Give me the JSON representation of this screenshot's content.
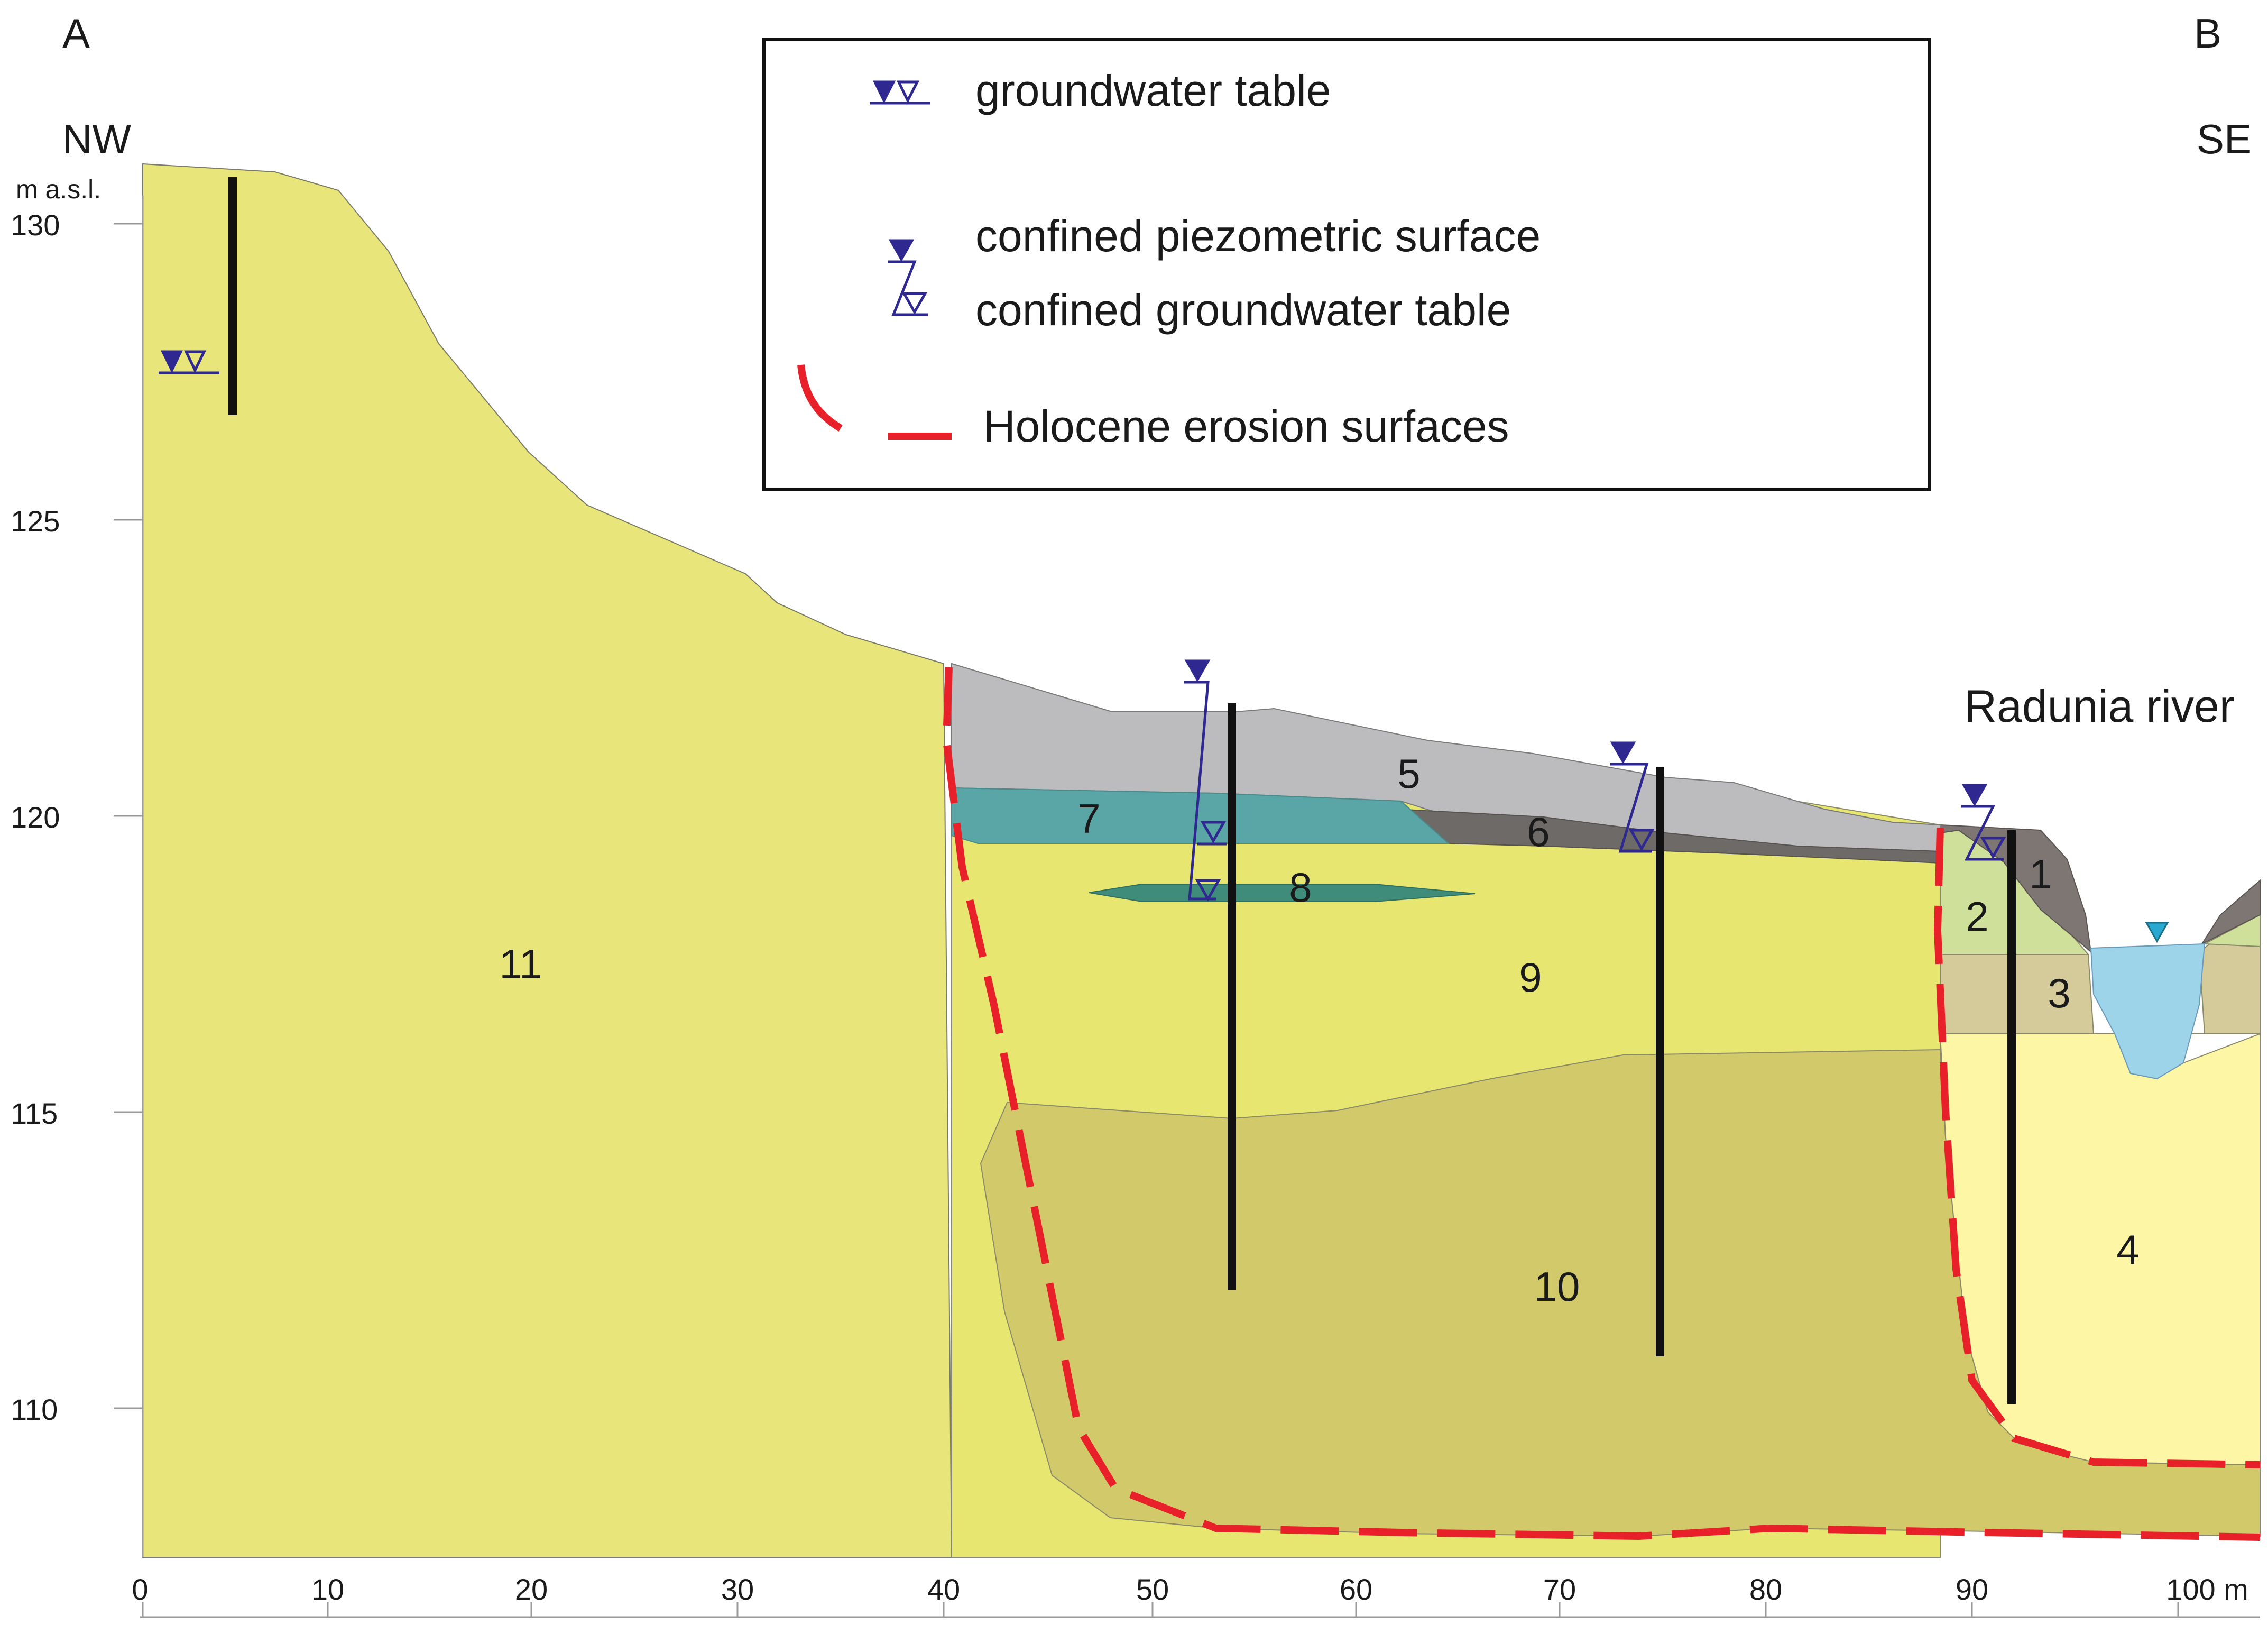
{
  "corners": {
    "left_letter": "A",
    "right_letter": "B",
    "left_direction": "NW",
    "right_direction": "SE"
  },
  "y_axis": {
    "unit_label": "m a.s.l.",
    "ticks": [
      "130",
      "125",
      "120",
      "115",
      "110"
    ]
  },
  "x_axis": {
    "ticks": [
      "0",
      "10",
      "20",
      "30",
      "40",
      "50",
      "60",
      "70",
      "80",
      "90",
      "100 m"
    ]
  },
  "legend": {
    "groundwater_table": "groundwater table",
    "confined_piezometric_surface": "confined piezometric surface",
    "confined_groundwater_table": "confined groundwater table",
    "holocene_erosion_surfaces": "Holocene erosion surfaces"
  },
  "river_label": "Radunia river",
  "units": [
    "1",
    "2",
    "3",
    "4",
    "5",
    "6",
    "7",
    "8",
    "9",
    "10",
    "11"
  ],
  "colors": {
    "unit_11": "#e8e67a",
    "unit_9": "#e6e670",
    "unit_10": "#d2ca6a",
    "unit_5": "#bcbcbe",
    "unit_6": "#6d6a68",
    "unit_7": "#5aa5a6",
    "unit_8": "#3f8c7a",
    "unit_1": "#7e7672",
    "unit_2": "#cfe09a",
    "unit_3": "#d5ca9a",
    "unit_4": "#fdf6a4",
    "river_water": "#9ed4ea",
    "erosion_surface": "#e8202a",
    "groundwater_symbol": "#2e2890",
    "borehole": "#111111"
  }
}
